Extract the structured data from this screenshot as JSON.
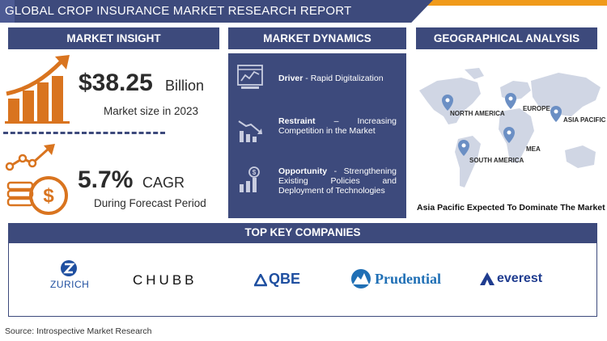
{
  "title": "GLOBAL CROP INSURANCE MARKET RESEARCH REPORT",
  "sections": {
    "insight": "MARKET INSIGHT",
    "dynamics": "MARKET DYNAMICS",
    "geo": "GEOGRAPHICAL ANALYSIS",
    "companies": "TOP KEY COMPANIES"
  },
  "insight": {
    "size_value": "$38.25",
    "size_unit": "Billion",
    "size_caption": "Market size in 2023",
    "cagr_value": "5.7%",
    "cagr_unit": "CAGR",
    "cagr_caption": "During Forecast Period"
  },
  "dynamics": [
    {
      "label": "Driver",
      "text": " - Rapid Digitalization"
    },
    {
      "label": "Restraint",
      "text": " – Increasing Competition in the Market"
    },
    {
      "label": "Opportunity",
      "text": " - Strengthening Existing Policies and Deployment of Technologies"
    }
  ],
  "geo": {
    "regions": [
      "NORTH AMERICA",
      "EUROPE",
      "ASIA PACIFIC",
      "MEA",
      "SOUTH AMERICA"
    ],
    "caption": "Asia Pacific Expected To Dominate The Market"
  },
  "companies": [
    "ZURICH",
    "CHUBB",
    "QBE",
    "Prudential",
    "everest"
  ],
  "source": "Source: Introspective Market Research",
  "colors": {
    "navy": "#3d4a7c",
    "orange": "#f09a1a",
    "icon_orange": "#d9741f"
  }
}
